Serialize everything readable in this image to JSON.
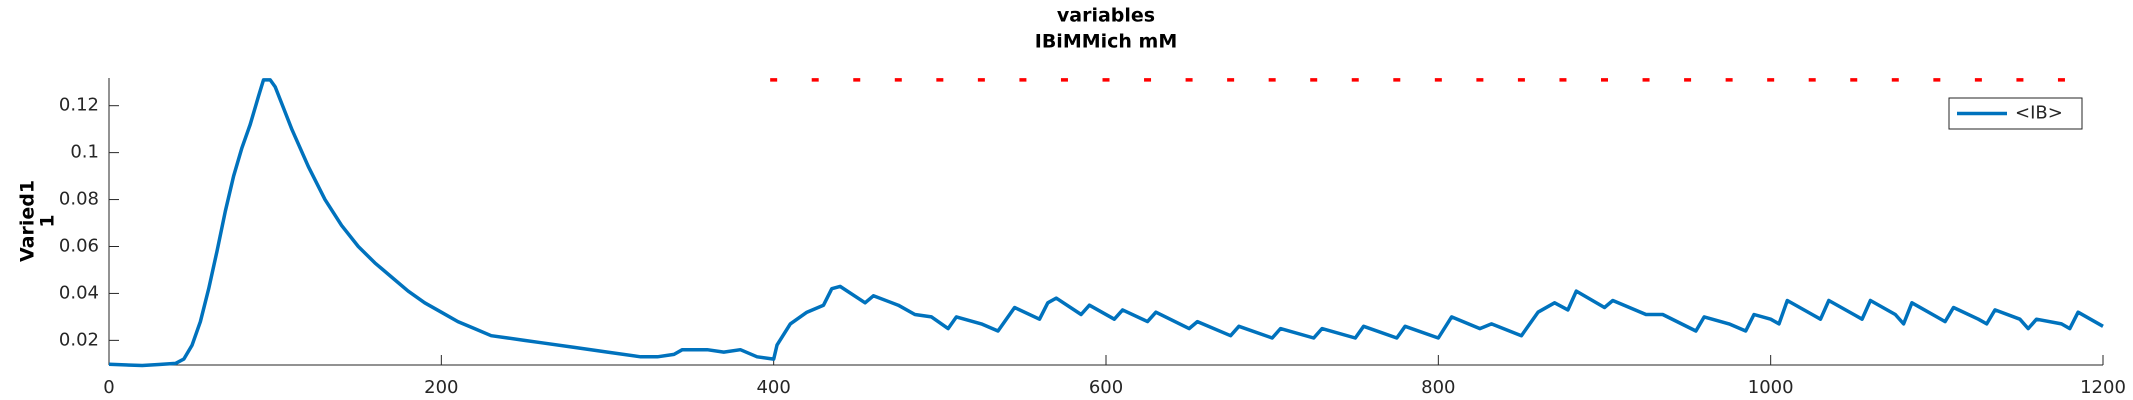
{
  "chart_data": {
    "type": "line",
    "title": [
      "variables",
      "IBiMMich mM"
    ],
    "ylabel": [
      "Varied1",
      "1"
    ],
    "xlim": [
      0,
      1200
    ],
    "ylim": [
      0.0095,
      0.1318
    ],
    "xticks": [
      0,
      200,
      400,
      600,
      800,
      1000,
      1200
    ],
    "yticks": [
      0.02,
      0.04,
      0.06,
      0.08,
      0.1,
      0.12
    ],
    "legend": "northeast",
    "grid": false,
    "series": [
      {
        "name": "<IB>",
        "color": "#0072bd",
        "style": "line",
        "x": [
          0,
          20,
          30,
          40,
          45,
          50,
          55,
          60,
          65,
          70,
          75,
          80,
          85,
          90,
          93,
          97,
          100,
          105,
          110,
          120,
          130,
          140,
          150,
          160,
          170,
          180,
          190,
          200,
          210,
          220,
          230,
          240,
          250,
          260,
          280,
          300,
          320,
          330,
          340,
          345,
          360,
          370,
          380,
          390,
          400,
          402,
          410,
          420,
          430,
          435,
          440,
          455,
          460,
          475,
          485,
          495,
          505,
          510,
          525,
          535,
          545,
          560,
          565,
          570,
          585,
          590,
          605,
          610,
          625,
          630,
          650,
          655,
          675,
          680,
          700,
          705,
          725,
          730,
          750,
          755,
          775,
          780,
          800,
          808,
          825,
          832,
          850,
          860,
          870,
          878,
          883,
          900,
          905,
          925,
          935,
          955,
          960,
          975,
          985,
          990,
          1000,
          1005,
          1010,
          1025,
          1030,
          1035,
          1050,
          1055,
          1060,
          1075,
          1080,
          1085,
          1100,
          1105,
          1110,
          1125,
          1130,
          1135,
          1150,
          1155,
          1160,
          1175,
          1180,
          1185,
          1200
        ],
        "values": [
          0.0098,
          0.0093,
          0.0097,
          0.0102,
          0.012,
          0.018,
          0.028,
          0.042,
          0.058,
          0.075,
          0.09,
          0.102,
          0.112,
          0.124,
          0.131,
          0.131,
          0.128,
          0.119,
          0.11,
          0.094,
          0.08,
          0.069,
          0.06,
          0.053,
          0.047,
          0.041,
          0.036,
          0.032,
          0.028,
          0.025,
          0.022,
          0.021,
          0.02,
          0.019,
          0.017,
          0.015,
          0.013,
          0.013,
          0.014,
          0.016,
          0.016,
          0.015,
          0.016,
          0.013,
          0.012,
          0.018,
          0.027,
          0.032,
          0.035,
          0.042,
          0.043,
          0.036,
          0.039,
          0.035,
          0.031,
          0.03,
          0.025,
          0.03,
          0.027,
          0.024,
          0.034,
          0.029,
          0.036,
          0.038,
          0.031,
          0.035,
          0.029,
          0.033,
          0.028,
          0.032,
          0.025,
          0.028,
          0.022,
          0.026,
          0.021,
          0.025,
          0.021,
          0.025,
          0.021,
          0.026,
          0.021,
          0.026,
          0.021,
          0.03,
          0.025,
          0.027,
          0.022,
          0.032,
          0.036,
          0.033,
          0.041,
          0.034,
          0.037,
          0.031,
          0.031,
          0.024,
          0.03,
          0.027,
          0.024,
          0.031,
          0.029,
          0.027,
          0.037,
          0.031,
          0.029,
          0.037,
          0.031,
          0.029,
          0.037,
          0.031,
          0.027,
          0.036,
          0.03,
          0.028,
          0.034,
          0.029,
          0.027,
          0.033,
          0.029,
          0.025,
          0.029,
          0.027,
          0.025,
          0.032,
          0.026
        ]
      },
      {
        "color": "#ff0000",
        "style": "dash-markers",
        "x": [
          400,
          425,
          450,
          475,
          500,
          525,
          550,
          575,
          600,
          625,
          650,
          675,
          700,
          725,
          750,
          775,
          800,
          825,
          850,
          875,
          900,
          925,
          950,
          975,
          1000,
          1025,
          1050,
          1075,
          1100,
          1125,
          1150,
          1175
        ],
        "values": [
          0.131,
          0.131,
          0.131,
          0.131,
          0.131,
          0.131,
          0.131,
          0.131,
          0.131,
          0.131,
          0.131,
          0.131,
          0.131,
          0.131,
          0.131,
          0.131,
          0.131,
          0.131,
          0.131,
          0.131,
          0.131,
          0.131,
          0.131,
          0.131,
          0.131,
          0.131,
          0.131,
          0.131,
          0.131,
          0.131,
          0.131,
          0.131
        ]
      }
    ]
  }
}
